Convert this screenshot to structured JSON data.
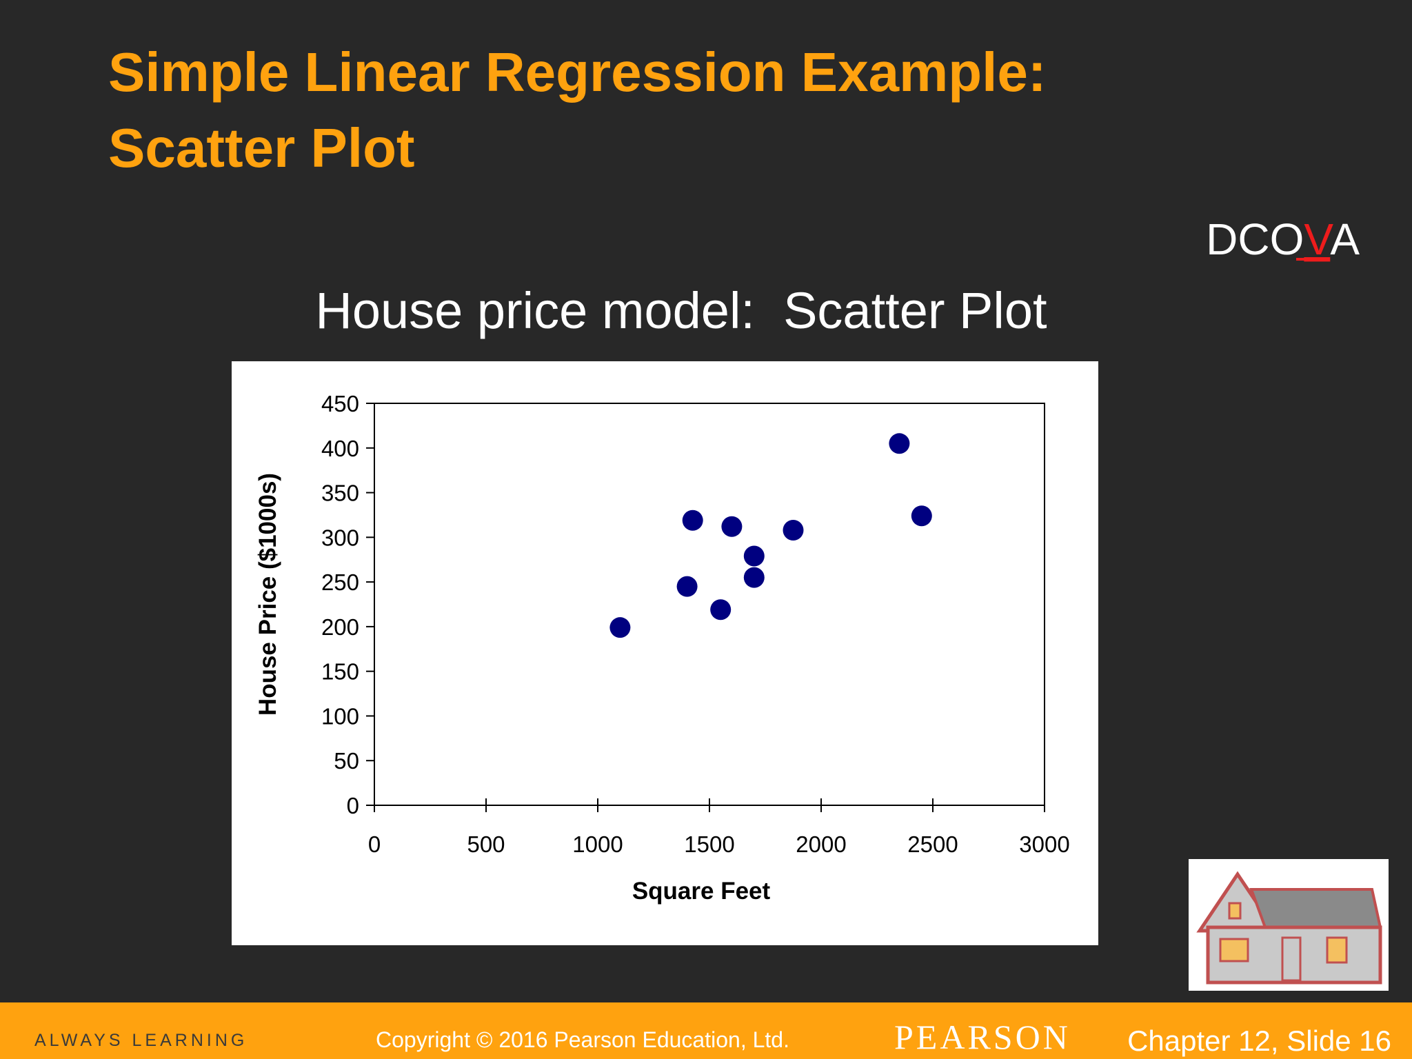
{
  "slide": {
    "title_lines": [
      "Simple Linear Regression Example:",
      "Scatter Plot"
    ],
    "tag": {
      "before": "DCO",
      "highlight": "V",
      "after": "A"
    },
    "footer": {
      "left": "ALWAYS LEARNING",
      "copyright": "Copyright © 2016 Pearson Education, Ltd.",
      "brand": "PEARSON",
      "page": "Chapter 12, Slide 16"
    }
  },
  "chart_data": {
    "type": "scatter",
    "title": "House price model:  Scatter Plot",
    "x_label": "Square Feet",
    "y_label": "House Price ($1000s)",
    "x": [
      1400,
      1600,
      1700,
      1875,
      1100,
      1550,
      2350,
      2450,
      1425,
      1700
    ],
    "values": [
      245,
      312,
      279,
      308,
      199,
      219,
      405,
      324,
      319,
      255
    ],
    "color": "#000080",
    "xlim": [
      0,
      3000
    ],
    "xticks": [
      0,
      500,
      1000,
      1500,
      2000,
      2500,
      3000
    ],
    "ylim": [
      0,
      450
    ],
    "yticks": [
      0,
      50,
      100,
      150,
      200,
      250,
      300,
      350,
      400,
      450
    ],
    "grid": false
  }
}
